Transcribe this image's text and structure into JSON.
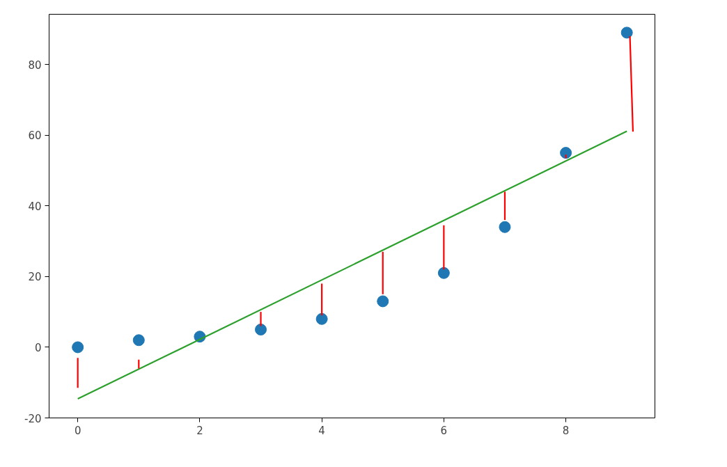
{
  "chart_data": {
    "type": "scatter",
    "xlim": [
      -0.47,
      9.46
    ],
    "ylim": [
      -20,
      94.2
    ],
    "xticks": [
      0,
      2,
      4,
      6,
      8
    ],
    "yticks": [
      -20,
      0,
      20,
      40,
      60,
      80
    ],
    "grid": false,
    "series": [
      {
        "color": "#1f77b4",
        "marker": "circle",
        "x": [
          0,
          1,
          2,
          3,
          4,
          5,
          6,
          7,
          8,
          9
        ],
        "values": [
          0,
          2,
          3,
          5,
          8,
          13,
          21,
          34,
          55,
          89
        ]
      },
      {
        "type": "line",
        "color": "#2ca02c",
        "x": [
          0,
          9
        ],
        "values": [
          -14.6,
          61.1
        ]
      },
      {
        "type": "line",
        "color": "#ff0000",
        "x": [
          0,
          0
        ],
        "values": [
          -3,
          -11.5
        ]
      },
      {
        "type": "line",
        "color": "#ff0000",
        "x": [
          1,
          1
        ],
        "values": [
          -3.5,
          -6
        ]
      },
      {
        "type": "line",
        "color": "#ff0000",
        "x": [
          3,
          3
        ],
        "values": [
          10,
          6
        ]
      },
      {
        "type": "line",
        "color": "#ff0000",
        "x": [
          4,
          4
        ],
        "values": [
          18,
          9
        ]
      },
      {
        "type": "line",
        "color": "#ff0000",
        "x": [
          5,
          5
        ],
        "values": [
          27,
          15
        ]
      },
      {
        "type": "line",
        "color": "#ff0000",
        "x": [
          6,
          6
        ],
        "values": [
          34.5,
          22
        ]
      },
      {
        "type": "line",
        "color": "#ff0000",
        "x": [
          7,
          7
        ],
        "values": [
          44,
          36
        ]
      },
      {
        "type": "line",
        "color": "#ff0000",
        "x": [
          8,
          8
        ],
        "values": [
          53.5,
          54.5
        ]
      },
      {
        "type": "line",
        "color": "#ff0000",
        "x": [
          9.05,
          9.1
        ],
        "values": [
          88,
          61
        ]
      }
    ]
  }
}
